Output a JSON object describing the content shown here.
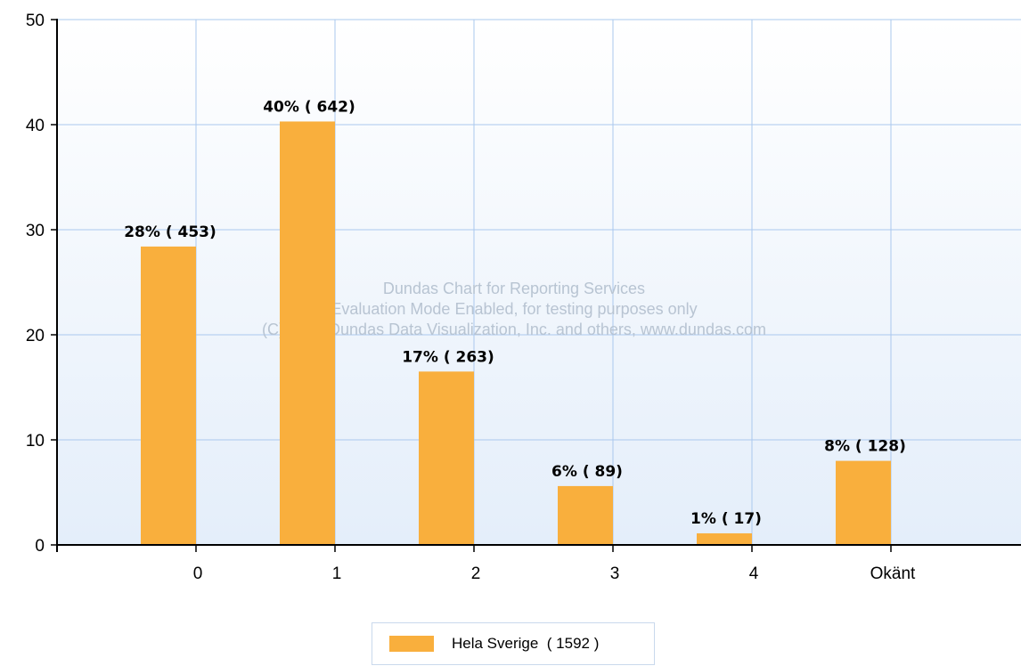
{
  "chart_data": {
    "type": "bar",
    "categories": [
      "0",
      "1",
      "2",
      "3",
      "4",
      "Okänt"
    ],
    "series": [
      {
        "name": "Hela Sverige  ( 1592 )",
        "values": [
          28.4,
          40.3,
          16.5,
          5.6,
          1.1,
          8.0
        ],
        "labels": [
          "28% ( 453)",
          "40% ( 642)",
          "17% ( 263)",
          "6% ( 89)",
          "1% ( 17)",
          "8% ( 128)"
        ],
        "color": "#f9af3d"
      }
    ],
    "ylim": [
      0,
      50
    ],
    "yticks": [
      0,
      10,
      20,
      30,
      40,
      50
    ],
    "grid": true,
    "legend_position": "bottom-center",
    "watermark": [
      "Dundas Chart for Reporting Services",
      "Evaluation Mode Enabled, for testing purposes only",
      "(C) 2007 Dundas Data Visualization, Inc. and others, www.dundas.com"
    ]
  },
  "colors": {
    "bar": "#f9af3d",
    "grid": "#aac8ee",
    "plot_top": "#ffffff",
    "plot_bottom": "#e4eefa",
    "axis": "#000000"
  }
}
